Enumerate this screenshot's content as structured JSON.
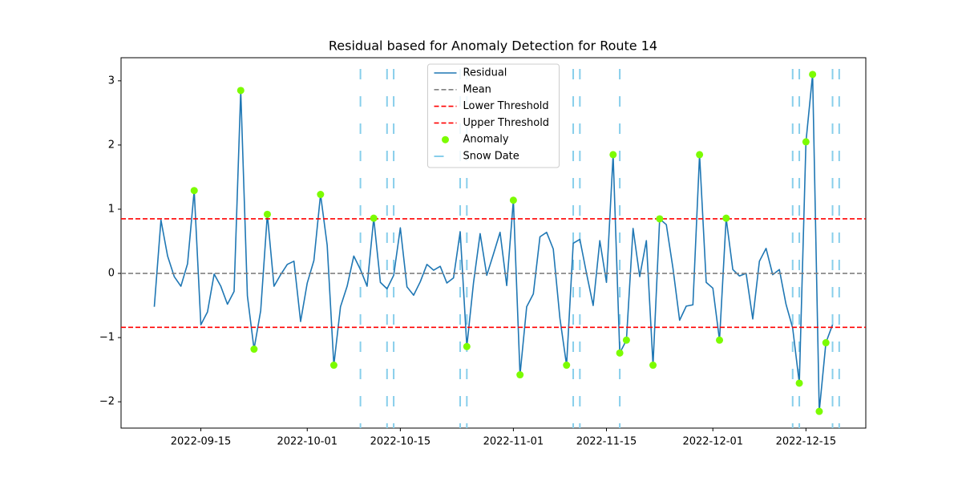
{
  "chart_data": {
    "type": "line",
    "title": "Residual based for Anomaly Detection for Route 14",
    "x": [
      "2022-09-08",
      "2022-09-09",
      "2022-09-10",
      "2022-09-11",
      "2022-09-12",
      "2022-09-13",
      "2022-09-14",
      "2022-09-15",
      "2022-09-16",
      "2022-09-17",
      "2022-09-18",
      "2022-09-19",
      "2022-09-20",
      "2022-09-21",
      "2022-09-22",
      "2022-09-23",
      "2022-09-24",
      "2022-09-25",
      "2022-09-26",
      "2022-09-27",
      "2022-09-28",
      "2022-09-29",
      "2022-09-30",
      "2022-10-01",
      "2022-10-02",
      "2022-10-03",
      "2022-10-04",
      "2022-10-05",
      "2022-10-06",
      "2022-10-07",
      "2022-10-08",
      "2022-10-09",
      "2022-10-10",
      "2022-10-11",
      "2022-10-12",
      "2022-10-13",
      "2022-10-14",
      "2022-10-15",
      "2022-10-16",
      "2022-10-17",
      "2022-10-18",
      "2022-10-19",
      "2022-10-20",
      "2022-10-21",
      "2022-10-22",
      "2022-10-23",
      "2022-10-24",
      "2022-10-25",
      "2022-10-26",
      "2022-10-27",
      "2022-10-28",
      "2022-10-29",
      "2022-10-30",
      "2022-10-31",
      "2022-11-01",
      "2022-11-02",
      "2022-11-03",
      "2022-11-04",
      "2022-11-05",
      "2022-11-06",
      "2022-11-07",
      "2022-11-08",
      "2022-11-09",
      "2022-11-10",
      "2022-11-11",
      "2022-11-12",
      "2022-11-13",
      "2022-11-14",
      "2022-11-15",
      "2022-11-16",
      "2022-11-17",
      "2022-11-18",
      "2022-11-19",
      "2022-11-20",
      "2022-11-21",
      "2022-11-22",
      "2022-11-23",
      "2022-11-24",
      "2022-11-25",
      "2022-11-26",
      "2022-11-27",
      "2022-11-28",
      "2022-11-29",
      "2022-11-30",
      "2022-12-01",
      "2022-12-02",
      "2022-12-03",
      "2022-12-04",
      "2022-12-05",
      "2022-12-06",
      "2022-12-07",
      "2022-12-08",
      "2022-12-09",
      "2022-12-10",
      "2022-12-11",
      "2022-12-12",
      "2022-12-13",
      "2022-12-14",
      "2022-12-15",
      "2022-12-16",
      "2022-12-17",
      "2022-12-18",
      "2022-12-19"
    ],
    "series": [
      {
        "name": "Residual",
        "color": "#1f77b4",
        "values": [
          -0.52,
          0.83,
          0.27,
          -0.05,
          -0.2,
          0.15,
          1.29,
          -0.8,
          -0.6,
          -0.01,
          -0.2,
          -0.48,
          -0.28,
          2.85,
          -0.35,
          -1.18,
          -0.58,
          0.92,
          -0.2,
          -0.02,
          0.14,
          0.19,
          -0.75,
          -0.15,
          0.2,
          1.23,
          0.44,
          -1.43,
          -0.52,
          -0.2,
          0.27,
          0.06,
          -0.2,
          0.86,
          -0.14,
          -0.24,
          -0.03,
          0.71,
          -0.21,
          -0.34,
          -0.13,
          0.14,
          0.05,
          0.11,
          -0.15,
          -0.07,
          0.65,
          -1.14,
          -0.15,
          0.62,
          -0.03,
          0.3,
          0.64,
          -0.19,
          1.14,
          -1.58,
          -0.52,
          -0.32,
          0.57,
          0.64,
          0.38,
          -0.7,
          -1.43,
          0.47,
          0.53,
          0.0,
          -0.5,
          0.51,
          -0.14,
          1.85,
          -1.24,
          -1.04,
          0.7,
          -0.05,
          0.51,
          -1.43,
          0.85,
          0.76,
          0.08,
          -0.73,
          -0.51,
          -0.49,
          1.85,
          -0.14,
          -0.23,
          -1.04,
          0.86,
          0.06,
          -0.04,
          0.0,
          -0.71,
          0.19,
          0.39,
          -0.02,
          0.06,
          -0.48,
          -0.85,
          -1.71,
          2.05,
          3.1,
          -2.15,
          -1.08,
          -0.8
        ]
      }
    ],
    "hlines": [
      {
        "name": "Mean",
        "value": 0,
        "color": "#808080"
      },
      {
        "name": "Lower Threshold",
        "value": -0.84,
        "color": "#ff0000"
      },
      {
        "name": "Upper Threshold",
        "value": 0.85,
        "color": "#ff0000"
      }
    ],
    "anomalies": {
      "name": "Anomaly",
      "color": "#7cfc00",
      "x": [
        "2022-09-14",
        "2022-09-21",
        "2022-09-23",
        "2022-09-25",
        "2022-10-03",
        "2022-10-05",
        "2022-10-11",
        "2022-10-25",
        "2022-11-01",
        "2022-11-02",
        "2022-11-09",
        "2022-11-16",
        "2022-11-17",
        "2022-11-18",
        "2022-11-22",
        "2022-11-23",
        "2022-11-29",
        "2022-12-02",
        "2022-12-03",
        "2022-12-14",
        "2022-12-15",
        "2022-12-16",
        "2022-12-17",
        "2022-12-18"
      ],
      "values": [
        1.29,
        2.85,
        -1.18,
        0.92,
        1.23,
        -1.43,
        0.86,
        -1.14,
        1.14,
        -1.58,
        -1.43,
        1.85,
        -1.24,
        -1.04,
        -1.43,
        0.85,
        1.85,
        -1.04,
        0.86,
        -1.71,
        2.05,
        3.1,
        -2.15,
        -1.08
      ]
    },
    "snow_dates": {
      "name": "Snow Date",
      "color": "#87ceeb",
      "x": [
        "2022-10-09",
        "2022-10-13",
        "2022-10-14",
        "2022-10-24",
        "2022-10-25",
        "2022-11-10",
        "2022-11-11",
        "2022-11-17",
        "2022-12-13",
        "2022-12-14",
        "2022-12-19",
        "2022-12-20"
      ]
    },
    "xlim": [
      "2022-09-03",
      "2022-12-24"
    ],
    "xticks": [
      "2022-09-15",
      "2022-10-01",
      "2022-10-15",
      "2022-11-01",
      "2022-11-15",
      "2022-12-01",
      "2022-12-15"
    ],
    "ylim": [
      -2.41,
      3.36
    ],
    "yticks": [
      {
        "value": -2,
        "label": "−2"
      },
      {
        "value": -1,
        "label": "−1"
      },
      0,
      1,
      2,
      3
    ],
    "legend": "upper center"
  }
}
